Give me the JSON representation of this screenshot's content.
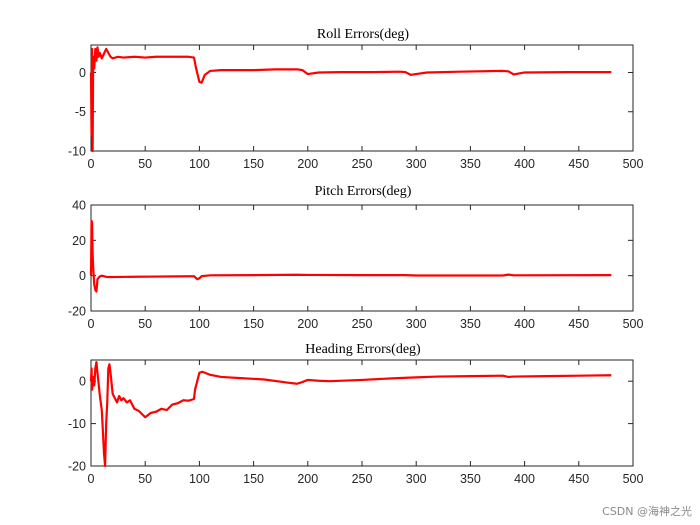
{
  "watermark": "CSDN @海神之光",
  "line_color": "#ff0000",
  "chart_data": [
    {
      "type": "line",
      "title": "Roll Errors(deg)",
      "xlabel": "",
      "ylabel": "",
      "xlim": [
        0,
        500
      ],
      "ylim": [
        -10,
        3.5
      ],
      "xticks": [
        0,
        50,
        100,
        150,
        200,
        250,
        300,
        350,
        400,
        450,
        500
      ],
      "yticks": [
        -10,
        -5,
        0
      ],
      "series": [
        {
          "name": "Roll",
          "x": [
            0,
            0.5,
            1,
            1.5,
            2,
            3,
            4,
            5,
            6,
            7,
            8,
            9,
            10,
            12,
            14,
            16,
            18,
            20,
            25,
            30,
            40,
            50,
            60,
            70,
            80,
            90,
            95,
            97,
            100,
            102,
            105,
            110,
            120,
            130,
            150,
            170,
            190,
            195,
            200,
            210,
            230,
            260,
            285,
            290,
            295,
            310,
            340,
            380,
            385,
            390,
            400,
            440,
            480
          ],
          "y": [
            0,
            -8,
            3,
            -10,
            2,
            0.5,
            3,
            1.5,
            3.2,
            2,
            2.5,
            2.2,
            1.8,
            2.4,
            3,
            2.5,
            2.0,
            1.8,
            2.0,
            1.9,
            2.0,
            1.9,
            2.0,
            2.0,
            2.0,
            2.0,
            1.9,
            0.5,
            -1.2,
            -1.3,
            -0.3,
            0.2,
            0.3,
            0.3,
            0.3,
            0.4,
            0.4,
            0.3,
            -0.2,
            0.0,
            0.05,
            0.05,
            0.1,
            0.05,
            -0.3,
            0.0,
            0.1,
            0.2,
            0.15,
            -0.25,
            0.0,
            0.05,
            0.05
          ]
        }
      ]
    },
    {
      "type": "line",
      "title": "Pitch Errors(deg)",
      "xlabel": "",
      "ylabel": "",
      "xlim": [
        0,
        500
      ],
      "ylim": [
        -20,
        40
      ],
      "xticks": [
        0,
        50,
        100,
        150,
        200,
        250,
        300,
        350,
        400,
        450,
        500
      ],
      "yticks": [
        -20,
        0,
        20,
        40
      ],
      "series": [
        {
          "name": "Pitch",
          "x": [
            0,
            0.5,
            1,
            1.5,
            2,
            3,
            4,
            5,
            6,
            8,
            10,
            15,
            20,
            40,
            60,
            80,
            95,
            98,
            100,
            102,
            110,
            150,
            190,
            200,
            250,
            290,
            300,
            380,
            385,
            390,
            480
          ],
          "y": [
            0,
            31,
            30,
            12,
            5,
            -5,
            -8,
            -9,
            -2,
            -0.5,
            0,
            -0.8,
            -0.8,
            -0.6,
            -0.5,
            -0.4,
            -0.3,
            -2,
            -1.5,
            -0.3,
            0.2,
            0.3,
            0.5,
            0.4,
            0.3,
            0.3,
            0.1,
            0.1,
            0.6,
            0.2,
            0.3
          ]
        }
      ]
    },
    {
      "type": "line",
      "title": "Heading Errors(deg)",
      "xlabel": "",
      "ylabel": "",
      "xlim": [
        0,
        500
      ],
      "ylim": [
        -20,
        5
      ],
      "xticks": [
        0,
        50,
        100,
        150,
        200,
        250,
        300,
        350,
        400,
        450,
        500
      ],
      "yticks": [
        -20,
        -10,
        0
      ],
      "series": [
        {
          "name": "Heading",
          "x": [
            0,
            0.5,
            1,
            2,
            3,
            4,
            5,
            6,
            8,
            10,
            11,
            12,
            13,
            14,
            15,
            16,
            17,
            18,
            20,
            22,
            24,
            26,
            28,
            30,
            33,
            36,
            40,
            44,
            48,
            50,
            55,
            60,
            65,
            70,
            75,
            80,
            85,
            90,
            95,
            96,
            98,
            100,
            103,
            110,
            120,
            140,
            160,
            180,
            190,
            195,
            200,
            210,
            220,
            250,
            280,
            300,
            320,
            350,
            380,
            385,
            390,
            420,
            450,
            480
          ],
          "y": [
            0,
            3,
            -2,
            1,
            -1,
            3,
            4.5,
            2,
            -3,
            -7,
            -12,
            -17,
            -20,
            -10,
            -5,
            3,
            4,
            2,
            -3,
            -4,
            -5,
            -3.5,
            -4.5,
            -4,
            -5,
            -4.5,
            -6.5,
            -7,
            -8,
            -8.5,
            -7.5,
            -7.2,
            -6.5,
            -6.8,
            -5.5,
            -5.2,
            -4.5,
            -4.6,
            -4.2,
            -2,
            0,
            2,
            2.2,
            1.5,
            1.0,
            0.7,
            0.4,
            -0.3,
            -0.6,
            -0.2,
            0.3,
            0.1,
            0.0,
            0.3,
            0.7,
            0.9,
            1.1,
            1.2,
            1.3,
            1.0,
            1.1,
            1.2,
            1.3,
            1.4
          ]
        }
      ]
    }
  ]
}
